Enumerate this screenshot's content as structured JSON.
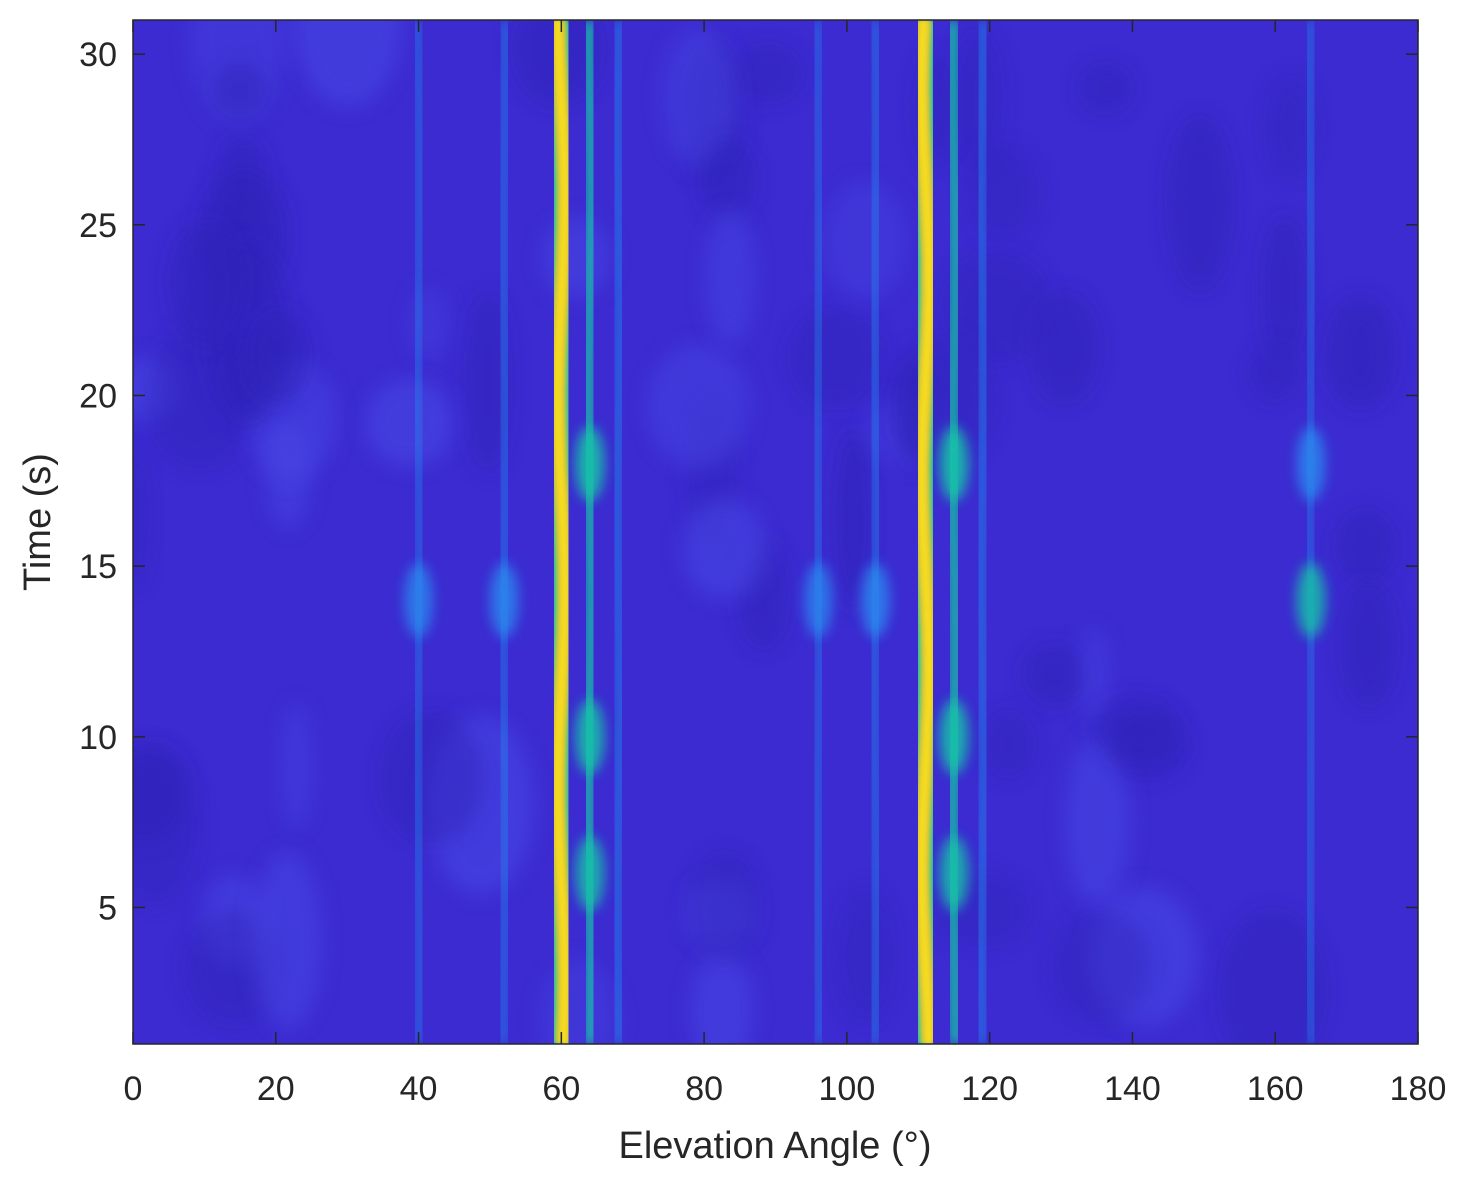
{
  "chart_data": {
    "type": "heatmap",
    "title": "",
    "xlabel": "Elevation Angle (°)",
    "ylabel": "Time (s)",
    "xlim": [
      0,
      180
    ],
    "ylim": [
      1,
      31
    ],
    "xticks": [
      0,
      20,
      40,
      60,
      80,
      100,
      120,
      140,
      160,
      180
    ],
    "yticks": [
      5,
      10,
      15,
      20,
      25,
      30
    ],
    "colormap": "parula",
    "colors": {
      "low": "#3b2bd0",
      "mid": "#1f8ff0",
      "cyan": "#19c3a8",
      "high": "#f4e21c"
    },
    "dominant_ridges": [
      {
        "center_elevation": 60,
        "time_range": [
          1,
          31
        ],
        "intensity": 1.0
      },
      {
        "center_elevation": 111,
        "time_range": [
          1,
          31
        ],
        "intensity": 1.0
      }
    ],
    "secondary_ridges": [
      {
        "center_elevation": 64,
        "time_range": [
          1,
          31
        ],
        "intensity": 0.5
      },
      {
        "center_elevation": 115,
        "time_range": [
          1,
          31
        ],
        "intensity": 0.5
      },
      {
        "center_elevation": 68,
        "time_range": [
          1,
          31
        ],
        "intensity": 0.3
      },
      {
        "center_elevation": 119,
        "time_range": [
          1,
          31
        ],
        "intensity": 0.3
      },
      {
        "center_elevation": 52,
        "time_range": [
          1,
          31
        ],
        "intensity": 0.25
      },
      {
        "center_elevation": 104,
        "time_range": [
          1,
          31
        ],
        "intensity": 0.25
      },
      {
        "center_elevation": 40,
        "time_range": [
          1,
          31
        ],
        "intensity": 0.2
      },
      {
        "center_elevation": 96,
        "time_range": [
          1,
          31
        ],
        "intensity": 0.2
      },
      {
        "center_elevation": 165,
        "time_range": [
          1,
          31
        ],
        "intensity": 0.18
      }
    ],
    "hotspots": [
      {
        "elevation": 40,
        "time": 14,
        "intensity": 0.35
      },
      {
        "elevation": 52,
        "time": 14,
        "intensity": 0.4
      },
      {
        "elevation": 96,
        "time": 14,
        "intensity": 0.3
      },
      {
        "elevation": 104,
        "time": 14,
        "intensity": 0.4
      },
      {
        "elevation": 165,
        "time": 14,
        "intensity": 0.45
      },
      {
        "elevation": 165,
        "time": 18,
        "intensity": 0.4
      },
      {
        "elevation": 64,
        "time": 18,
        "intensity": 0.55
      },
      {
        "elevation": 115,
        "time": 18,
        "intensity": 0.55
      },
      {
        "elevation": 64,
        "time": 10,
        "intensity": 0.5
      },
      {
        "elevation": 115,
        "time": 10,
        "intensity": 0.5
      },
      {
        "elevation": 64,
        "time": 6,
        "intensity": 0.45
      },
      {
        "elevation": 115,
        "time": 6,
        "intensity": 0.45
      }
    ],
    "grid": false,
    "legend": "none"
  }
}
